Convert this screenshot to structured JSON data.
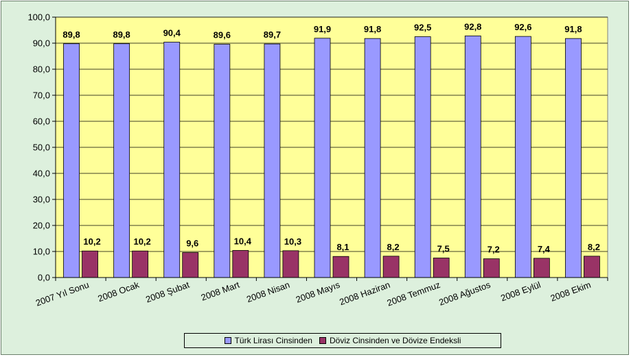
{
  "chart_data": {
    "type": "bar",
    "categories": [
      "2007 Yıl Sonu",
      "2008 Ocak",
      "2008 Şubat",
      "2008 Mart",
      "2008 Nisan",
      "2008 Mayıs",
      "2008 Haziran",
      "2008 Temmuz",
      "2008 Ağustos",
      "2008 Eylül",
      "2008 Ekim"
    ],
    "series": [
      {
        "name": "Türk Lirası Cinsinden",
        "color": "#9999ff",
        "values": [
          89.8,
          89.8,
          90.4,
          89.6,
          89.7,
          91.9,
          91.8,
          92.5,
          92.8,
          92.6,
          91.8
        ],
        "labels": [
          "89,8",
          "89,8",
          "90,4",
          "89,6",
          "89,7",
          "91,9",
          "91,8",
          "92,5",
          "92,8",
          "92,6",
          "91,8"
        ]
      },
      {
        "name": "Döviz Cinsinden ve Dövize Endeksli",
        "color": "#993366",
        "values": [
          10.2,
          10.2,
          9.6,
          10.4,
          10.3,
          8.1,
          8.2,
          7.5,
          7.2,
          7.4,
          8.2
        ],
        "labels": [
          "10,2",
          "10,2",
          "9,6",
          "10,4",
          "10,3",
          "8,1",
          "8,2",
          "7,5",
          "7,2",
          "7,4",
          "8,2"
        ]
      }
    ],
    "ylim": [
      0,
      100
    ],
    "yticks": [
      0,
      10,
      20,
      30,
      40,
      50,
      60,
      70,
      80,
      90,
      100
    ],
    "ytick_labels": [
      "0,0",
      "10,0",
      "20,0",
      "30,0",
      "40,0",
      "50,0",
      "60,0",
      "70,0",
      "80,0",
      "90,0",
      "100,0"
    ],
    "title": "",
    "xlabel": "",
    "ylabel": "",
    "plot_background": "#ffff99",
    "chart_background": "#ddf0dd",
    "grid": true,
    "legend_position": "bottom"
  }
}
